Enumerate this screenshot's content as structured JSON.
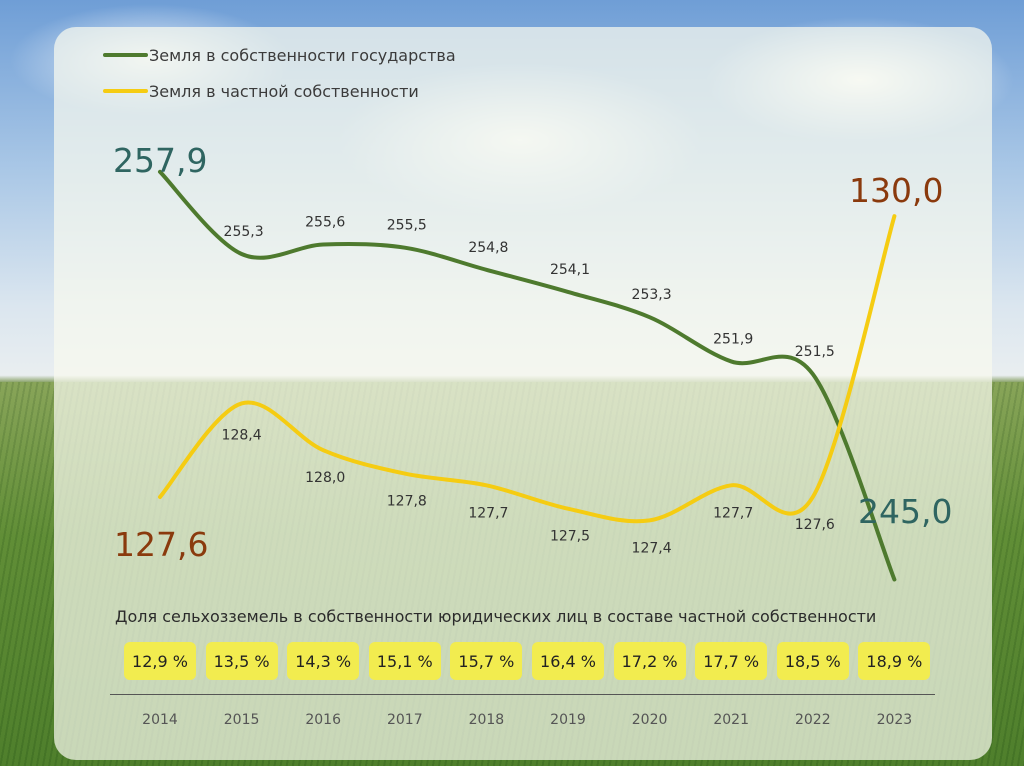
{
  "chart_data": {
    "type": "line",
    "title": "",
    "categories": [
      "2014",
      "2015",
      "2016",
      "2017",
      "2018",
      "2019",
      "2020",
      "2021",
      "2022",
      "2023"
    ],
    "series": [
      {
        "name": "Земля в собственности государства",
        "color": "#4e7a2e",
        "values": [
          257.9,
          255.3,
          255.6,
          255.5,
          254.8,
          254.1,
          253.3,
          251.9,
          251.5,
          245.0
        ],
        "labels": [
          "257,9",
          "255,3",
          "255,6",
          "255,5",
          "254,8",
          "254,1",
          "253,3",
          "251,9",
          "251,5",
          "245,0"
        ]
      },
      {
        "name": "Земля в частной собственности",
        "color": "#f5cc12",
        "values": [
          127.6,
          128.4,
          128.0,
          127.8,
          127.7,
          127.5,
          127.4,
          127.7,
          127.6,
          130.0
        ],
        "labels": [
          "127,6",
          "128,4",
          "128,0",
          "127,8",
          "127,7",
          "127,5",
          "127,4",
          "127,7",
          "127,6",
          "130,0"
        ]
      }
    ],
    "share": {
      "title": "Доля сельхозземель в собственности юридических лиц в составе частной собственности",
      "values": [
        12.9,
        13.5,
        14.3,
        15.1,
        15.7,
        16.4,
        17.2,
        17.7,
        18.5,
        18.9
      ],
      "labels": [
        "12,9 %",
        "13,5 %",
        "14,3 %",
        "15,1 %",
        "15,7 %",
        "16,4 %",
        "17,2 %",
        "17,7 %",
        "18,5 %",
        "18,9 %"
      ]
    },
    "colors": {
      "highlight_badge": "#f2ec4f",
      "big_label_green": "#2f6561",
      "big_label_brown": "#8a3a0d"
    }
  }
}
